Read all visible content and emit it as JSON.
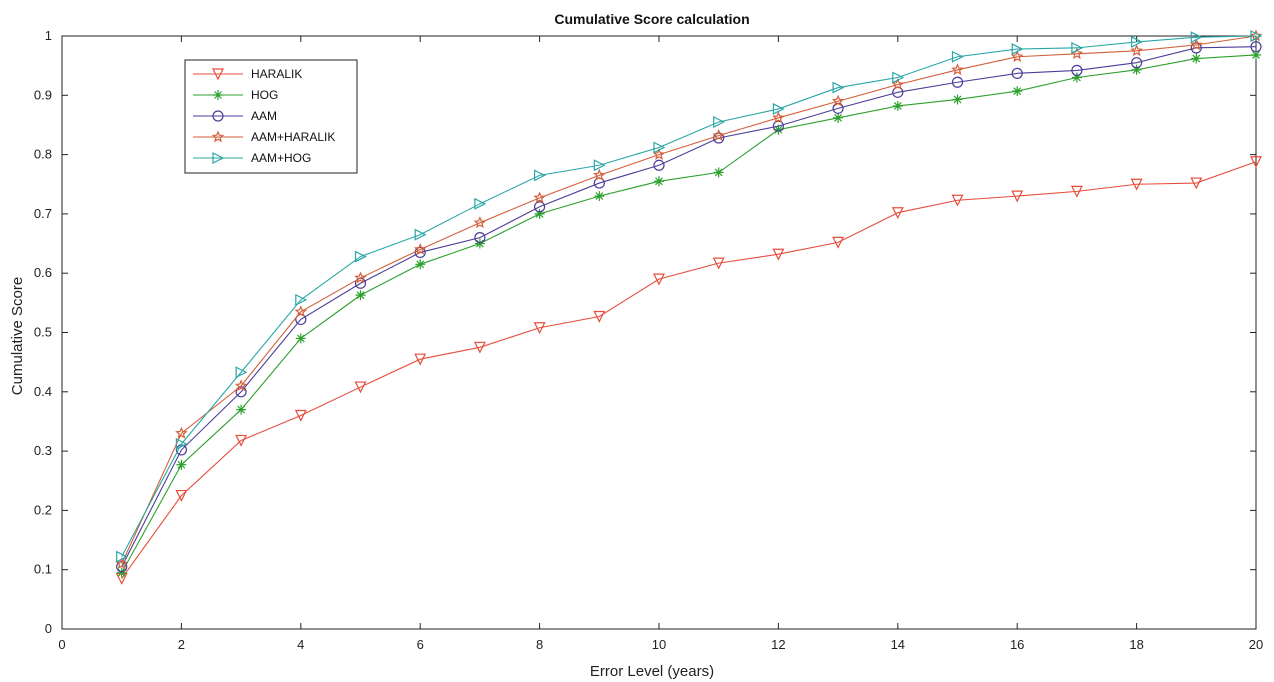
{
  "chart_data": {
    "type": "line",
    "title": "Cumulative Score calculation",
    "xlabel": "Error Level (years)",
    "ylabel": "Cumulative Score",
    "xlim": [
      0,
      20
    ],
    "ylim": [
      0,
      1
    ],
    "xticks": [
      0,
      2,
      4,
      6,
      8,
      10,
      12,
      14,
      16,
      18,
      20
    ],
    "yticks": [
      0,
      0.1,
      0.2,
      0.3,
      0.4,
      0.5,
      0.6,
      0.7,
      0.8,
      0.9,
      1
    ],
    "grid": false,
    "legend_position": "top-left",
    "x": [
      1,
      2,
      3,
      4,
      5,
      6,
      7,
      8,
      9,
      10,
      11,
      12,
      13,
      14,
      15,
      16,
      17,
      18,
      19,
      20
    ],
    "series": [
      {
        "name": "HARALIK",
        "color": "#e74c3c",
        "marker": "triangle-down",
        "values": [
          0.085,
          0.225,
          0.318,
          0.36,
          0.408,
          0.455,
          0.475,
          0.508,
          0.527,
          0.59,
          0.617,
          0.632,
          0.652,
          0.702,
          0.723,
          0.73,
          0.738,
          0.75,
          0.752,
          0.788
        ]
      },
      {
        "name": "HOG",
        "color": "#2ca02c",
        "marker": "asterisk",
        "values": [
          0.095,
          0.277,
          0.37,
          0.49,
          0.563,
          0.615,
          0.65,
          0.7,
          0.73,
          0.755,
          0.77,
          0.842,
          0.862,
          0.882,
          0.893,
          0.907,
          0.93,
          0.943,
          0.962,
          0.968
        ]
      },
      {
        "name": "AAM",
        "color": "#4b3d99",
        "marker": "circle",
        "values": [
          0.105,
          0.302,
          0.4,
          0.522,
          0.583,
          0.635,
          0.66,
          0.712,
          0.752,
          0.782,
          0.828,
          0.848,
          0.878,
          0.905,
          0.922,
          0.937,
          0.942,
          0.955,
          0.98,
          0.982
        ]
      },
      {
        "name": "AAM+HARALIK",
        "color": "#d35f3a",
        "marker": "star",
        "values": [
          0.11,
          0.33,
          0.41,
          0.535,
          0.592,
          0.64,
          0.685,
          0.727,
          0.765,
          0.8,
          0.832,
          0.862,
          0.89,
          0.918,
          0.943,
          0.965,
          0.97,
          0.975,
          0.985,
          1.0
        ]
      },
      {
        "name": "AAM+HOG",
        "color": "#2aa6a6",
        "marker": "triangle-right",
        "values": [
          0.122,
          0.312,
          0.433,
          0.555,
          0.628,
          0.665,
          0.717,
          0.765,
          0.782,
          0.812,
          0.855,
          0.877,
          0.913,
          0.93,
          0.965,
          0.978,
          0.98,
          0.99,
          0.998,
          1.0
        ]
      }
    ]
  }
}
